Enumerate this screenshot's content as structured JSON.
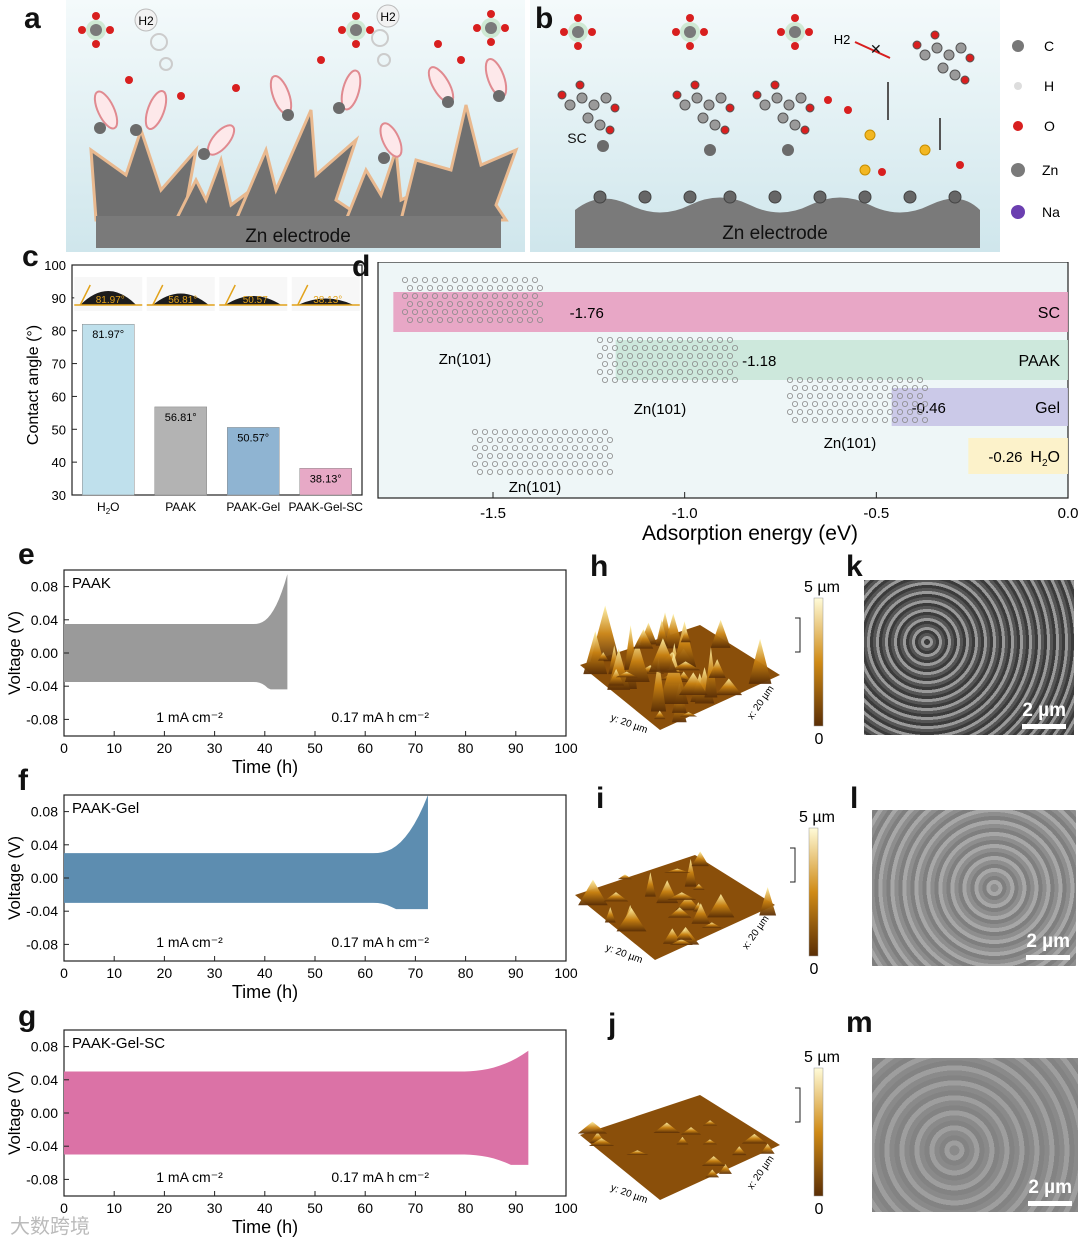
{
  "panels": {
    "a": "a",
    "b": "b",
    "c": "c",
    "d": "d",
    "e": "e",
    "f": "f",
    "g": "g",
    "h": "h",
    "i": "i",
    "j": "j",
    "k": "k",
    "l": "l",
    "m": "m"
  },
  "schematic_a": {
    "electrode_label": "Zn electrode",
    "h2_label_1": "H2",
    "h2_label_2": "H2"
  },
  "schematic_b": {
    "electrode_label": "Zn electrode",
    "sc_label": "SC",
    "h2_label": "H2",
    "legend": [
      "C",
      "H",
      "O",
      "Zn",
      "Na"
    ],
    "legend_colors": [
      "#777777",
      "#dddddd",
      "#d81f1f",
      "#7a7a7a",
      "#6b3fb0"
    ]
  },
  "contact_angle": {
    "ylabel": "Contact angle (°)",
    "yticks": [
      "100",
      "90",
      "80",
      "70",
      "60",
      "50",
      "40",
      "30"
    ],
    "droplet_labels": [
      "81.97°",
      "56.81°",
      "50.57",
      "38.13°"
    ]
  },
  "adsorption": {
    "xlabel": "Adsorption energy (eV)",
    "xticks": [
      "-1.5",
      "-1.0",
      "-0.5",
      "0.0"
    ],
    "surface_label": "Zn(101)",
    "surface_labels": [
      "Zn(101)",
      "Zn(101)",
      "Zn(101)",
      "Zn(101)"
    ]
  },
  "voltage_plots": {
    "ylabel": "Voltage (V)",
    "xlabel": "Time (h)",
    "yticks": [
      "0.08",
      "0.04",
      "0.00",
      "-0.04",
      "-0.08"
    ],
    "xticks": [
      "0",
      "10",
      "20",
      "30",
      "40",
      "50",
      "60",
      "70",
      "80",
      "90",
      "100"
    ],
    "current_label": "1 mA cm⁻²",
    "capacity_label": "0.17 mA h cm⁻²"
  },
  "afm": {
    "scale_max": "5 µm",
    "scale_min": "0",
    "x_axis": "x: 20 µm",
    "y_axis": "y: 20 µm"
  },
  "sem": {
    "scale_label": "2 µm"
  },
  "watermark": "大数跨境",
  "chart_data": [
    {
      "type": "bar",
      "panel": "c",
      "categories": [
        "H2O",
        "PAAK",
        "PAAK-Gel",
        "PAAK-Gel-SC"
      ],
      "values": [
        81.97,
        56.81,
        50.57,
        38.13
      ],
      "value_labels": [
        "81.97°",
        "56.81°",
        "50.57°",
        "38.13°"
      ],
      "colors": [
        "#bfe0ec",
        "#b3b3b3",
        "#8fb4d2",
        "#e7a9c6"
      ],
      "ylabel": "Contact angle (°)",
      "ylim": [
        30,
        100
      ]
    },
    {
      "type": "bar",
      "panel": "d",
      "orientation": "horizontal",
      "categories": [
        "SC",
        "PAAK",
        "Gel",
        "H2O"
      ],
      "values": [
        -1.76,
        -1.18,
        -0.46,
        -0.26
      ],
      "value_labels": [
        "-1.76",
        "-1.18",
        "-0.46",
        "-0.26"
      ],
      "colors": [
        "#e79ec0",
        "#c9e7d8",
        "#c6c4e6",
        "#fdf2c4"
      ],
      "xlabel": "Adsorption energy (eV)",
      "xlim": [
        -1.8,
        0.0
      ]
    },
    {
      "type": "line",
      "panel": "e",
      "series": [
        {
          "name": "PAAK",
          "color": "#9a9a9a",
          "time_end": 44.5,
          "base_amplitude": 0.035,
          "failure_peak": 0.095
        }
      ],
      "xlabel": "Time (h)",
      "ylabel": "Voltage (V)",
      "xlim": [
        0,
        100
      ],
      "ylim": [
        -0.1,
        0.1
      ]
    },
    {
      "type": "line",
      "panel": "f",
      "series": [
        {
          "name": "PAAK-Gel",
          "color": "#5d8db0",
          "time_end": 72.5,
          "base_amplitude": 0.03,
          "failure_peak": 0.1
        }
      ],
      "xlabel": "Time (h)",
      "ylabel": "Voltage (V)",
      "xlim": [
        0,
        100
      ],
      "ylim": [
        -0.1,
        0.1
      ]
    },
    {
      "type": "line",
      "panel": "g",
      "series": [
        {
          "name": "PAAK-Gel-SC",
          "color": "#db72a6",
          "time_end": 92.5,
          "base_amplitude": 0.05,
          "failure_peak": 0.075
        }
      ],
      "xlabel": "Time (h)",
      "ylabel": "Voltage (V)",
      "xlim": [
        0,
        100
      ],
      "ylim": [
        -0.1,
        0.1
      ]
    }
  ]
}
